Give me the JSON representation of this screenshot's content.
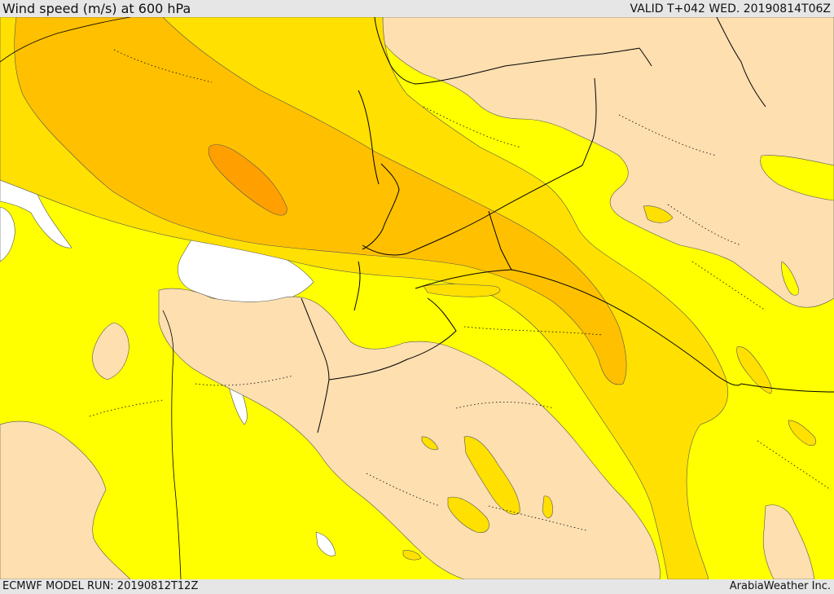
{
  "header": {
    "title": "Wind speed (m/s) at 600 hPa",
    "valid_time": "VALID T+042 WED. 20190814T06Z"
  },
  "footer": {
    "model_run": "ECMWF MODEL RUN: 20190812T12Z",
    "credit": "ArabiaWeather Inc."
  },
  "map": {
    "colors": {
      "sea": "#ffffff",
      "band_low": "#fddfb0",
      "band_1": "#ffff00",
      "band_2": "#ffe000",
      "band_3": "#ffc000",
      "band_4": "#ffa000",
      "border": "#000000"
    }
  }
}
